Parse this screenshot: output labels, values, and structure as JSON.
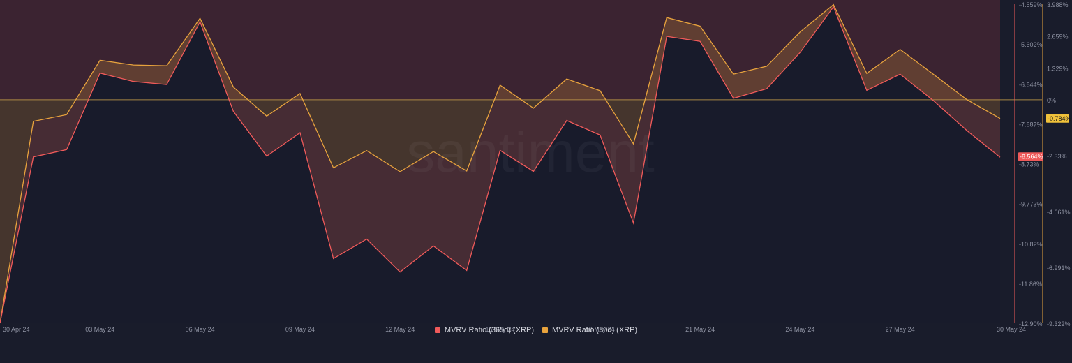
{
  "chart_data": {
    "type": "line",
    "watermark": "santiment",
    "x_tick_labels": [
      "30 Apr 24",
      "03 May 24",
      "06 May 24",
      "09 May 24",
      "12 May 24",
      "15 May 24",
      "18 May 24",
      "21 May 24",
      "24 May 24",
      "27 May 24",
      "30 May 24"
    ],
    "x": [
      "2024-04-30",
      "2024-05-01",
      "2024-05-02",
      "2024-05-03",
      "2024-05-04",
      "2024-05-05",
      "2024-05-06",
      "2024-05-07",
      "2024-05-08",
      "2024-05-09",
      "2024-05-10",
      "2024-05-11",
      "2024-05-12",
      "2024-05-13",
      "2024-05-14",
      "2024-05-15",
      "2024-05-16",
      "2024-05-17",
      "2024-05-18",
      "2024-05-19",
      "2024-05-20",
      "2024-05-21",
      "2024-05-22",
      "2024-05-23",
      "2024-05-24",
      "2024-05-25",
      "2024-05-26",
      "2024-05-27",
      "2024-05-28",
      "2024-05-29",
      "2024-05-30"
    ],
    "series": [
      {
        "name": "MVRV Ratio (365d) (XRP)",
        "color": "#f05a5a",
        "axis": "left",
        "ylim": [
          -12.9,
          -4.559
        ],
        "tick_labels": [
          "-4.559%",
          "-5.602%",
          "-6.644%",
          "-7.687%",
          "-8.73%",
          "-9.773%",
          "-10.82%",
          "-11.86%",
          "-12.90%"
        ],
        "current_label": "-8.564%",
        "values": [
          -12.9,
          -8.55,
          -8.36,
          -6.36,
          -6.58,
          -6.66,
          -5.02,
          -7.36,
          -8.53,
          -7.92,
          -11.21,
          -10.7,
          -11.56,
          -10.88,
          -11.52,
          -8.38,
          -8.93,
          -7.6,
          -7.98,
          -10.28,
          -5.4,
          -5.53,
          -7.02,
          -6.77,
          -5.82,
          -4.63,
          -6.81,
          -6.39,
          -7.08,
          -7.86,
          -8.56
        ]
      },
      {
        "name": "MVRV Ratio (30d) (XRP)",
        "color": "#e8a33d",
        "axis": "right",
        "ylim": [
          -9.322,
          3.988
        ],
        "tick_labels": [
          "3.988%",
          "2.659%",
          "1.329%",
          "0%",
          "-2.33%",
          "-4.661%",
          "-6.991%",
          "-9.322%"
        ],
        "current_label": "-0.784%",
        "values": [
          -9.32,
          -0.9,
          -0.62,
          1.65,
          1.45,
          1.42,
          3.4,
          0.53,
          -0.68,
          0.26,
          -2.84,
          -2.12,
          -3.0,
          -2.16,
          -2.97,
          0.61,
          -0.35,
          0.87,
          0.38,
          -1.84,
          3.43,
          3.07,
          1.07,
          1.4,
          2.83,
          3.97,
          1.1,
          2.1,
          1.06,
          0.01,
          -0.78
        ]
      }
    ]
  },
  "legend": {
    "items": [
      {
        "label": "MVRV Ratio (365d) (XRP)",
        "color": "#f05a5a"
      },
      {
        "label": "MVRV Ratio (30d) (XRP)",
        "color": "#e8a33d"
      }
    ]
  }
}
